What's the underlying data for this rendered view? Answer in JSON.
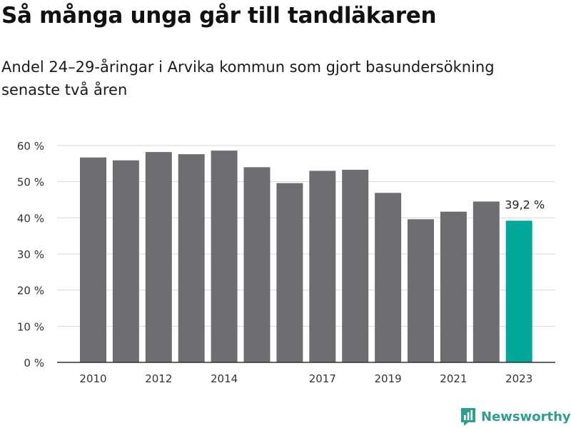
{
  "title": "Så många unga går till tandläkaren",
  "subtitle": "Andel 24–29-åringar i Arvika kommun som gjort basundersökning senaste två åren",
  "brand": {
    "name": "Newsworthy",
    "icon": "newsworthy-logo-icon",
    "color": "#2e9e8f"
  },
  "chart_data": {
    "type": "bar",
    "title": "Så många unga går till tandläkaren",
    "subtitle": "Andel 24–29-åringar i Arvika kommun som gjort basundersökning senaste två åren",
    "categories": [
      "2010",
      "2011",
      "2012",
      "2013",
      "2014",
      "2015",
      "2016",
      "2017",
      "2018",
      "2019",
      "2020",
      "2021",
      "2022",
      "2023"
    ],
    "values": [
      56.7,
      55.9,
      58.2,
      57.6,
      58.6,
      54.0,
      49.6,
      53.0,
      53.3,
      46.9,
      39.6,
      41.7,
      44.5,
      39.2
    ],
    "xtick_labels": [
      "2010",
      "2012",
      "2014",
      "2017",
      "2019",
      "2021",
      "2023"
    ],
    "yticks": [
      0,
      10,
      20,
      30,
      40,
      50,
      60
    ],
    "ytick_labels": [
      "0 %",
      "10 %",
      "20 %",
      "30 %",
      "40 %",
      "50 %",
      "60 %"
    ],
    "ylim": [
      0,
      60
    ],
    "ylabel": "",
    "xlabel": "",
    "grid": true,
    "annotation": {
      "category": "2023",
      "text": "39,2 %"
    },
    "colors": {
      "bar": "#6d6d72",
      "highlight": "#00a79a",
      "grid": "#d9d9d9",
      "axis": "#333333"
    }
  }
}
